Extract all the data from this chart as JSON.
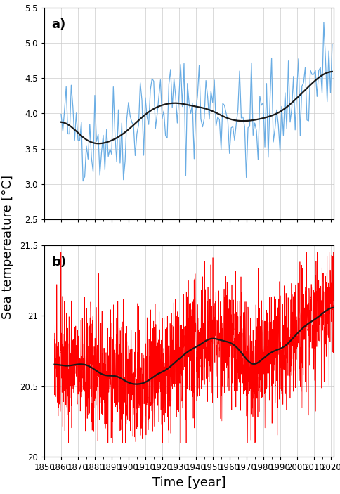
{
  "panel_a": {
    "label": "a)",
    "xlim": [
      1850,
      2022
    ],
    "ylim": [
      2.5,
      5.5
    ],
    "yticks": [
      2.5,
      3.0,
      3.5,
      4.0,
      4.5,
      5.0,
      5.5
    ],
    "xticks": [
      1850,
      1860,
      1870,
      1880,
      1890,
      1900,
      1910,
      1920,
      1930,
      1940,
      1950,
      1960,
      1970,
      1980,
      1990,
      2000,
      2010,
      2020
    ],
    "line_color": "#6aade4",
    "smooth_color": "#1a1a1a",
    "data_start": 1860,
    "data_end": 2022
  },
  "panel_b": {
    "label": "b)",
    "xlim": [
      1850,
      2022
    ],
    "ylim": [
      20.0,
      21.5
    ],
    "yticks": [
      20.0,
      20.5,
      21.0,
      21.5
    ],
    "xticks": [
      1850,
      1860,
      1870,
      1880,
      1890,
      1900,
      1910,
      1920,
      1930,
      1940,
      1950,
      1960,
      1970,
      1980,
      1990,
      2000,
      2010,
      2020
    ],
    "line_color": "#ff0000",
    "smooth_color": "#1a1a1a",
    "data_start": 1856,
    "data_end": 2022
  },
  "ylabel": "Sea tempereature [°C]",
  "xlabel": "Time [year]",
  "fig_bg": "#ffffff",
  "grid_color": "#cccccc",
  "label_fontsize": 13,
  "tick_fontsize": 8.5
}
